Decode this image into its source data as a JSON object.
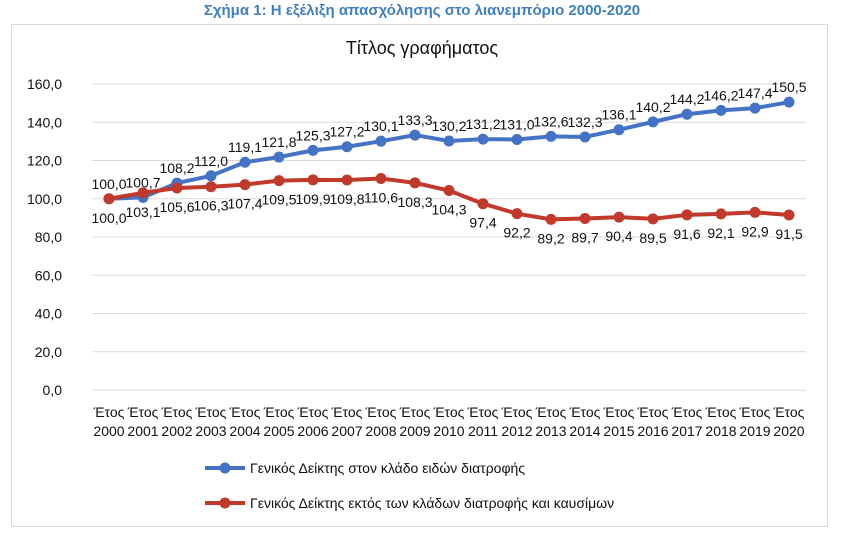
{
  "figure_caption": "Σχήμα 1: Η εξέλιξη απασχόλησης στο λιανεμπόριο 2000-2020",
  "colors": {
    "series1": "#4472c4",
    "series2": "#c0392b",
    "grid": "#d9d9d9",
    "caption": "#3f7fc1"
  },
  "chart_data": {
    "type": "line",
    "title": "Τίτλος γραφήματος",
    "xlabel": "",
    "ylabel": "",
    "ylim": [
      0,
      160
    ],
    "y_ticks": [
      "0,0",
      "20,0",
      "40,0",
      "60,0",
      "80,0",
      "100,0",
      "120,0",
      "140,0",
      "160,0"
    ],
    "grid": true,
    "legend": "bottom-left",
    "categories": [
      "Έτος 2000",
      "Έτος 2001",
      "Έτος 2002",
      "Έτος 2003",
      "Έτος 2004",
      "Έτος 2005",
      "Έτος 2006",
      "Έτος 2007",
      "Έτος 2008",
      "Έτος 2009",
      "Έτος 2010",
      "Έτος 2011",
      "Έτος 2012",
      "Έτος 2013",
      "Έτος 2014",
      "Έτος 2015",
      "Έτος 2016",
      "Έτος 2017",
      "Έτος 2018",
      "Έτος 2019",
      "Έτος 2020"
    ],
    "series": [
      {
        "name": "Γενικός Δείκτης στον κλάδο ειδών διατροφής",
        "values": [
          100.0,
          100.7,
          108.2,
          112.0,
          119.1,
          121.8,
          125.3,
          127.2,
          130.1,
          133.3,
          130.2,
          131.2,
          131.0,
          132.6,
          132.3,
          136.1,
          140.2,
          144.2,
          146.2,
          147.4,
          150.5
        ],
        "labels": [
          "100,0",
          "100,7",
          "108,2",
          "112,0",
          "119,1",
          "121,8",
          "125,3",
          "127,2",
          "130,1",
          "133,3",
          "130,2",
          "131,2",
          "131,0",
          "132,6",
          "132,3",
          "136,1",
          "140,2",
          "144,2",
          "146,2",
          "147,4",
          "150,5"
        ]
      },
      {
        "name": "Γενικός Δείκτης εκτός των κλάδων διατροφής και καυσίμων",
        "values": [
          100.0,
          103.1,
          105.6,
          106.3,
          107.4,
          109.5,
          109.9,
          109.8,
          110.6,
          108.3,
          104.3,
          97.4,
          92.2,
          89.2,
          89.7,
          90.4,
          89.5,
          91.6,
          92.1,
          92.9,
          91.5
        ],
        "labels": [
          "100,0",
          "103,1",
          "105,6",
          "106,3",
          "107,4",
          "109,5",
          "109,9",
          "109,8",
          "110,6",
          "108,3",
          "104,3",
          "97,4",
          "92,2",
          "89,2",
          "89,7",
          "90,4",
          "89,5",
          "91,6",
          "92,1",
          "92,9",
          "91,5"
        ]
      }
    ]
  }
}
